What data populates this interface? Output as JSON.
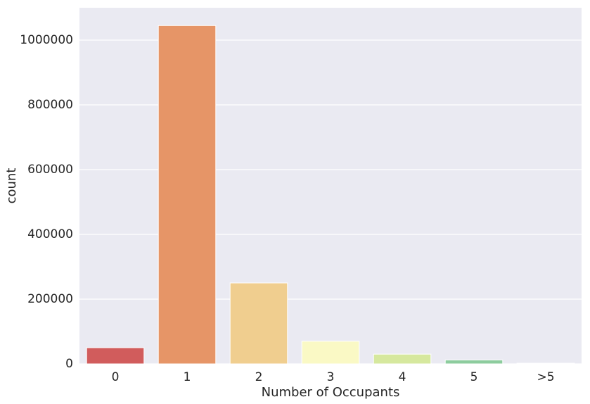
{
  "chart_data": {
    "type": "bar",
    "title": "",
    "xlabel": "Number of Occupants",
    "ylabel": "count",
    "categories": [
      "0",
      "1",
      "2",
      "3",
      "4",
      "5",
      ">5"
    ],
    "values": [
      50000,
      1045000,
      250000,
      70000,
      30000,
      12000,
      2000
    ],
    "ylim": [
      0,
      1100000
    ],
    "yticks": [
      0,
      200000,
      400000,
      600000,
      800000,
      1000000
    ],
    "ytick_labels": [
      "0",
      "200000",
      "400000",
      "600000",
      "800000",
      "1000000"
    ],
    "colors": [
      "#d15c5c",
      "#e69567",
      "#f0ce8f",
      "#faf9c5",
      "#d6e89e",
      "#8dcc9e",
      "#5aa8b8"
    ],
    "background_color": "#eaeaf2",
    "grid": true,
    "legend": "none"
  }
}
